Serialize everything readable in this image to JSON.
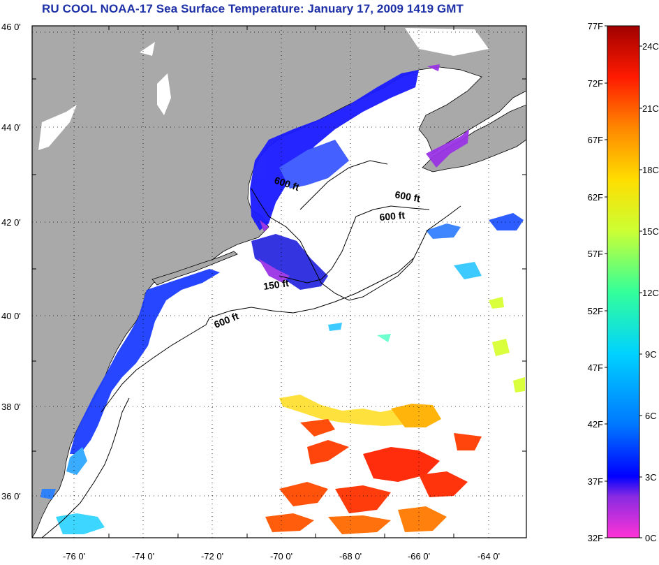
{
  "title": "RU COOL  NOAA-17  Sea Surface Temperature:  January 17, 2009 1419 GMT",
  "map": {
    "latitude_ticks": [
      "46 0'",
      "44 0'",
      "42 0'",
      "40 0'",
      "38 0'",
      "36 0'"
    ],
    "longitude_ticks": [
      "-76 0'",
      "-74 0'",
      "-72 0'",
      "-70 0'",
      "-68 0'",
      "-66 0'",
      "-64 0'"
    ],
    "contour_labels": [
      "600 ft",
      "600 ft",
      "600 ft",
      "150 ft",
      "600 ft"
    ],
    "colors": {
      "land": "#a9a9a9",
      "ocean": "#ffffff",
      "grid": "#000000"
    }
  },
  "colorbar": {
    "fahrenheit_labels": [
      "77F",
      "72F",
      "67F",
      "62F",
      "57F",
      "52F",
      "47F",
      "42F",
      "37F",
      "32F"
    ],
    "celsius_labels": [
      "24C",
      "21C",
      "18C",
      "15C",
      "12C",
      "9C",
      "6C",
      "3C",
      "0C"
    ],
    "range_f": [
      32,
      77
    ],
    "range_c": [
      0,
      25
    ],
    "colors": [
      "#ff33d6",
      "#8a2be2",
      "#0000ff",
      "#0077ff",
      "#00d2ff",
      "#33ff99",
      "#ccff33",
      "#ffdd00",
      "#ff8800",
      "#ff1a00",
      "#a00000"
    ]
  }
}
